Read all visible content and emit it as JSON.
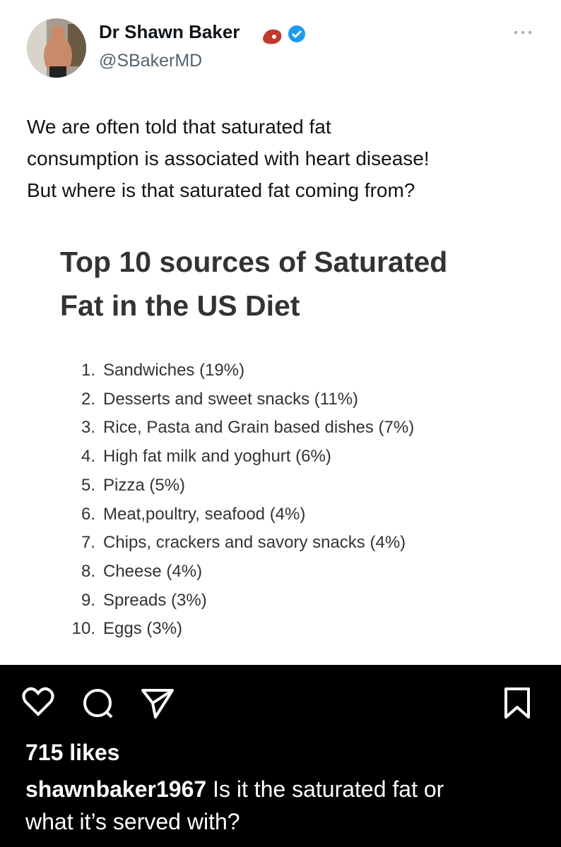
{
  "post": {
    "author": {
      "name": "Dr Shawn Baker",
      "handle": "@SBakerMD"
    },
    "text_lines": [
      "We are often told that saturated fat",
      "consumption is associated with heart disease!",
      "But where is that saturated fat coming from?"
    ],
    "image": {
      "title_lines": [
        "Top 10 sources of Saturated",
        "Fat in the US Diet"
      ],
      "items": [
        {
          "number": "1.",
          "text": "Sandwiches (19%)"
        },
        {
          "number": "2.",
          "text": "Desserts and sweet snacks (11%)"
        },
        {
          "number": "3.",
          "text": "Rice, Pasta and Grain based dishes (7%)"
        },
        {
          "number": "4.",
          "text": "High fat milk and yoghurt (6%)"
        },
        {
          "number": "5.",
          "text": "Pizza (5%)"
        },
        {
          "number": "6.",
          "text": "Meat,poultry, seafood (4%)"
        },
        {
          "number": "7.",
          "text": "Chips, crackers and savory snacks (4%)"
        },
        {
          "number": "8.",
          "text": "Cheese (4%)"
        },
        {
          "number": "9.",
          "text": "Spreads (3%)"
        },
        {
          "number": "10.",
          "text": "Eggs (3%)"
        }
      ]
    }
  },
  "footer": {
    "likes": "715 likes",
    "username": "shawnbaker1967",
    "caption_lines": [
      "Is it the saturated fat or",
      "what it’s served with?"
    ]
  }
}
